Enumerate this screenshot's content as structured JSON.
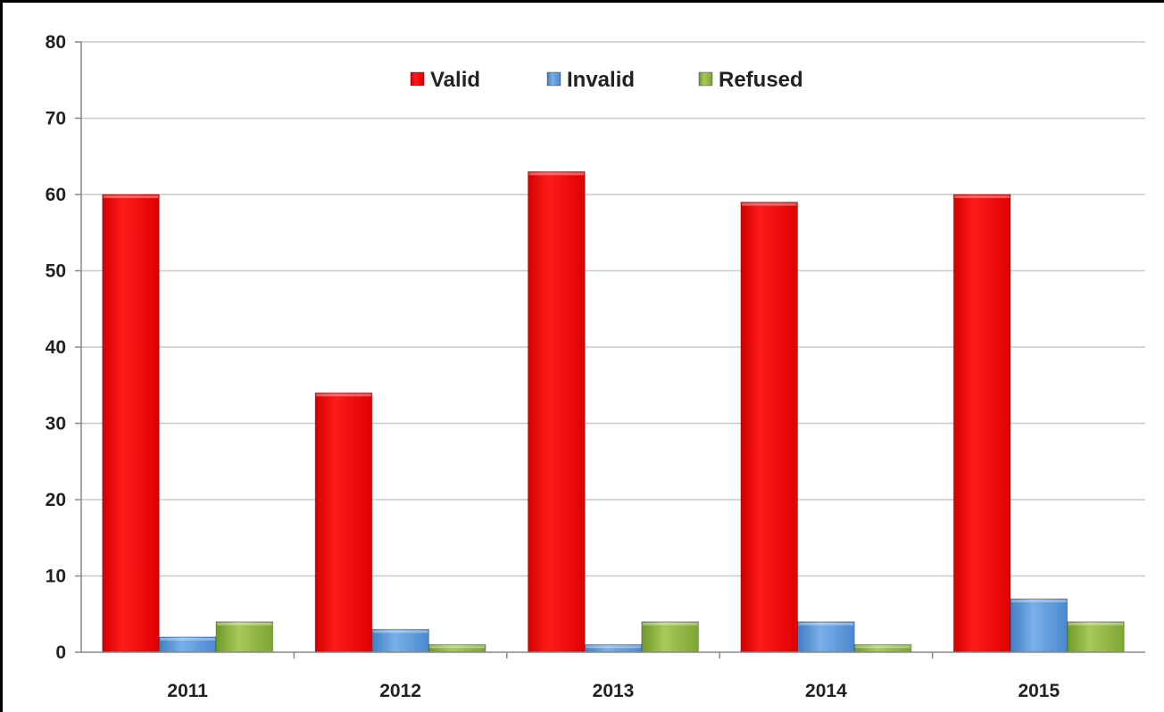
{
  "chart_data": {
    "type": "bar",
    "title": "",
    "xlabel": "",
    "ylabel": "",
    "categories": [
      "2011",
      "2012",
      "2013",
      "2014",
      "2015"
    ],
    "series": [
      {
        "name": "Valid",
        "values": [
          60,
          34,
          63,
          59,
          60
        ],
        "color": "#ff0000"
      },
      {
        "name": "Invalid",
        "values": [
          2,
          3,
          1,
          4,
          7
        ],
        "color": "#5b9bd5"
      },
      {
        "name": "Refused",
        "values": [
          4,
          1,
          4,
          1,
          4
        ],
        "color": "#8db23d"
      }
    ],
    "ylim": [
      0,
      80
    ],
    "yticks": [
      "0",
      "10",
      "20",
      "30",
      "40",
      "50",
      "60",
      "70",
      "80"
    ],
    "grid": true,
    "legend": "top-center"
  }
}
